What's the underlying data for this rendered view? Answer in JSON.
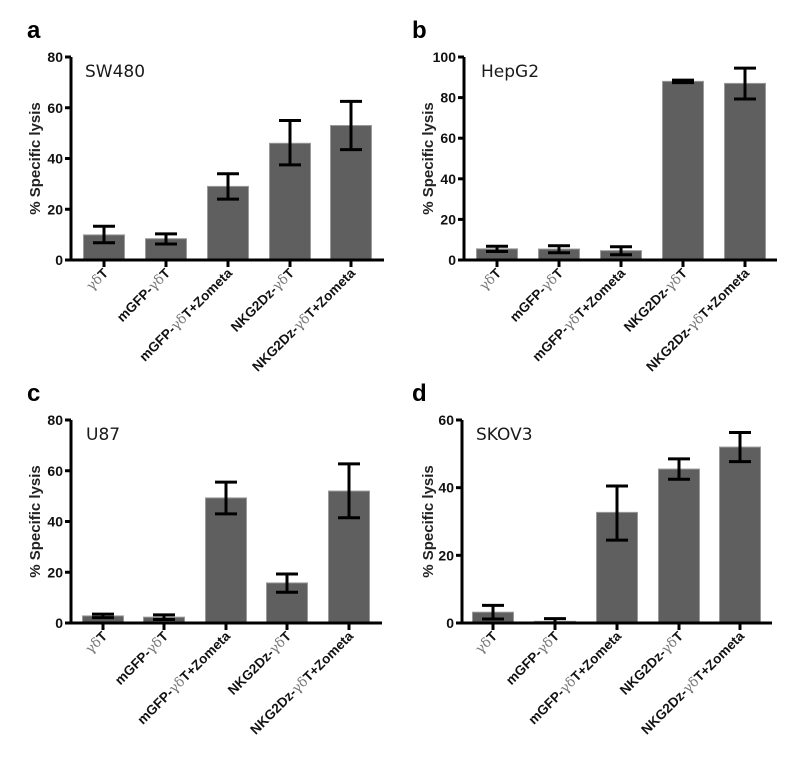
{
  "figure": {
    "bar_color": "#5f5f5f",
    "bar_edge_color": "#9a9a9a",
    "axis_color": "#000000",
    "error_color": "#000000"
  },
  "chart_data": [
    {
      "type": "bar",
      "panel": "a",
      "title": "SW480",
      "xlabel": "",
      "ylabel": "% Specific lysis",
      "ylim": [
        0,
        80
      ],
      "yticks": [
        0,
        20,
        40,
        60,
        80
      ],
      "categories": [
        "γδT",
        "mGFP-γδT",
        "mGFP-γδT+Zometa",
        "NKG2Dz-γδT",
        "NKG2Dz-γδT+Zometa"
      ],
      "values": [
        9.9,
        8.4,
        29,
        46,
        53
      ],
      "error_upper": [
        13.3,
        10.3,
        34,
        55,
        62.5
      ],
      "error_lower": [
        6.8,
        6.3,
        24,
        37.5,
        43.5
      ],
      "grid": false,
      "legend": "none"
    },
    {
      "type": "bar",
      "panel": "b",
      "title": "HepG2",
      "xlabel": "",
      "ylabel": "% Specific lysis",
      "ylim": [
        0,
        100
      ],
      "yticks": [
        0,
        20,
        40,
        60,
        80,
        100
      ],
      "categories": [
        "γδT",
        "mGFP-γδT",
        "mGFP-γδT+Zometa",
        "NKG2Dz-γδT",
        "NKG2Dz-γδT+Zometa"
      ],
      "values": [
        5.5,
        5.4,
        4.6,
        88,
        87
      ],
      "error_upper": [
        6.8,
        7,
        6.5,
        88.6,
        94.5
      ],
      "error_lower": [
        4.2,
        3.6,
        2.6,
        87.4,
        79.3
      ],
      "grid": false,
      "legend": "none"
    },
    {
      "type": "bar",
      "panel": "c",
      "title": "U87",
      "xlabel": "",
      "ylabel": "% Specific lysis",
      "ylim": [
        0,
        80
      ],
      "yticks": [
        0,
        20,
        40,
        60,
        80
      ],
      "categories": [
        "γδT",
        "mGFP-γδT",
        "mGFP-γδT+Zometa",
        "NKG2Dz-γδT",
        "NKG2Dz-γδT+Zometa"
      ],
      "values": [
        2.8,
        2.3,
        49.3,
        15.8,
        52
      ],
      "error_upper": [
        3.5,
        3.2,
        55.5,
        19.3,
        62.7
      ],
      "error_lower": [
        2.1,
        1.4,
        43,
        12.1,
        41.5
      ],
      "grid": false,
      "legend": "none"
    },
    {
      "type": "bar",
      "panel": "d",
      "title": "SKOV3",
      "xlabel": "",
      "ylabel": "% Specific lysis",
      "ylim": [
        0,
        60
      ],
      "yticks": [
        0,
        20,
        40,
        60
      ],
      "categories": [
        "γδT",
        "mGFP-γδT",
        "mGFP-γδT+Zometa",
        "NKG2Dz-γδT",
        "NKG2Dz-γδT+Zometa"
      ],
      "values": [
        3.2,
        0.5,
        32.7,
        45.5,
        52
      ],
      "error_upper": [
        5.2,
        1.3,
        40.5,
        48.5,
        56.3
      ],
      "error_lower": [
        1.2,
        0,
        24.5,
        42.5,
        47.7
      ],
      "grid": false,
      "legend": "none"
    }
  ]
}
